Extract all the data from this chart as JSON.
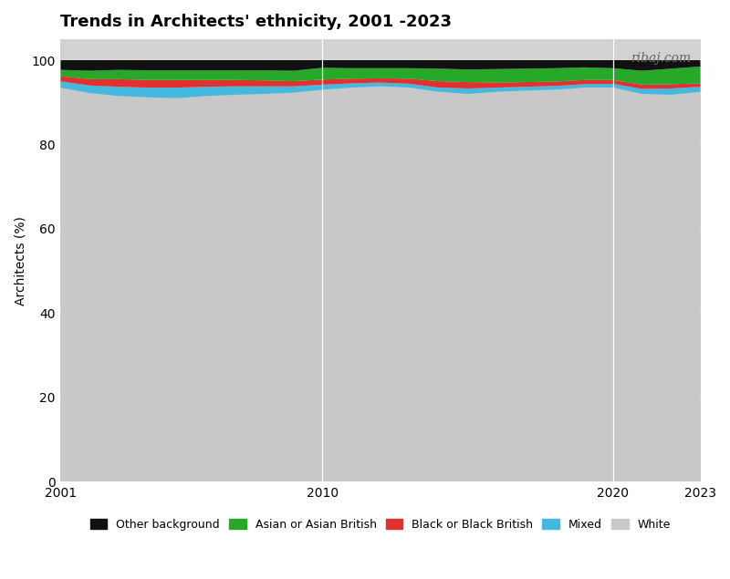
{
  "title": "Trends in Architects' ethnicity, 2001 -2023",
  "ylabel": "Architects (%)",
  "watermark": "ribaj.com",
  "years": [
    2001,
    2002,
    2003,
    2004,
    2005,
    2006,
    2007,
    2008,
    2009,
    2010,
    2011,
    2012,
    2013,
    2014,
    2015,
    2016,
    2017,
    2018,
    2019,
    2020,
    2021,
    2022,
    2023
  ],
  "white": [
    93.5,
    92.2,
    91.5,
    91.2,
    91.0,
    91.5,
    91.8,
    92.0,
    92.3,
    93.0,
    93.5,
    93.8,
    93.5,
    92.5,
    92.0,
    92.5,
    92.8,
    93.0,
    93.5,
    93.5,
    92.0,
    91.8,
    92.5
  ],
  "mixed": [
    1.5,
    1.8,
    2.2,
    2.3,
    2.5,
    2.2,
    2.0,
    1.8,
    1.5,
    1.2,
    1.0,
    0.9,
    0.9,
    1.0,
    1.3,
    1.0,
    0.9,
    0.9,
    0.8,
    0.9,
    1.2,
    1.5,
    1.2
  ],
  "black": [
    1.2,
    1.5,
    1.8,
    1.8,
    1.8,
    1.6,
    1.5,
    1.4,
    1.2,
    1.2,
    1.1,
    1.0,
    1.2,
    1.5,
    1.5,
    1.2,
    1.1,
    1.0,
    1.0,
    0.9,
    1.0,
    1.0,
    0.8
  ],
  "asian": [
    1.5,
    2.0,
    2.2,
    2.3,
    2.3,
    2.3,
    2.3,
    2.4,
    2.5,
    2.8,
    2.5,
    2.4,
    2.5,
    3.0,
    3.0,
    3.2,
    3.2,
    3.2,
    3.0,
    2.8,
    3.3,
    3.7,
    4.0
  ],
  "other": [
    2.3,
    2.5,
    2.3,
    2.4,
    2.4,
    2.4,
    2.4,
    2.4,
    2.5,
    1.8,
    1.9,
    1.9,
    1.9,
    2.0,
    2.2,
    2.1,
    2.0,
    1.9,
    1.7,
    1.9,
    2.5,
    2.0,
    1.5
  ],
  "colors": {
    "white": "#c8c8c8",
    "mixed": "#45b8e0",
    "black": "#e03030",
    "asian": "#28a828",
    "other": "#111111"
  },
  "legend_labels": [
    "Other background",
    "Asian or Asian British",
    "Black or Black British",
    "Mixed",
    "White"
  ],
  "ylim": [
    0,
    105
  ],
  "yticks": [
    0,
    20,
    40,
    60,
    80,
    100
  ],
  "xlim": [
    2001,
    2023
  ],
  "background_color": "#ffffff",
  "plot_bg_color": "#d2d2d2"
}
